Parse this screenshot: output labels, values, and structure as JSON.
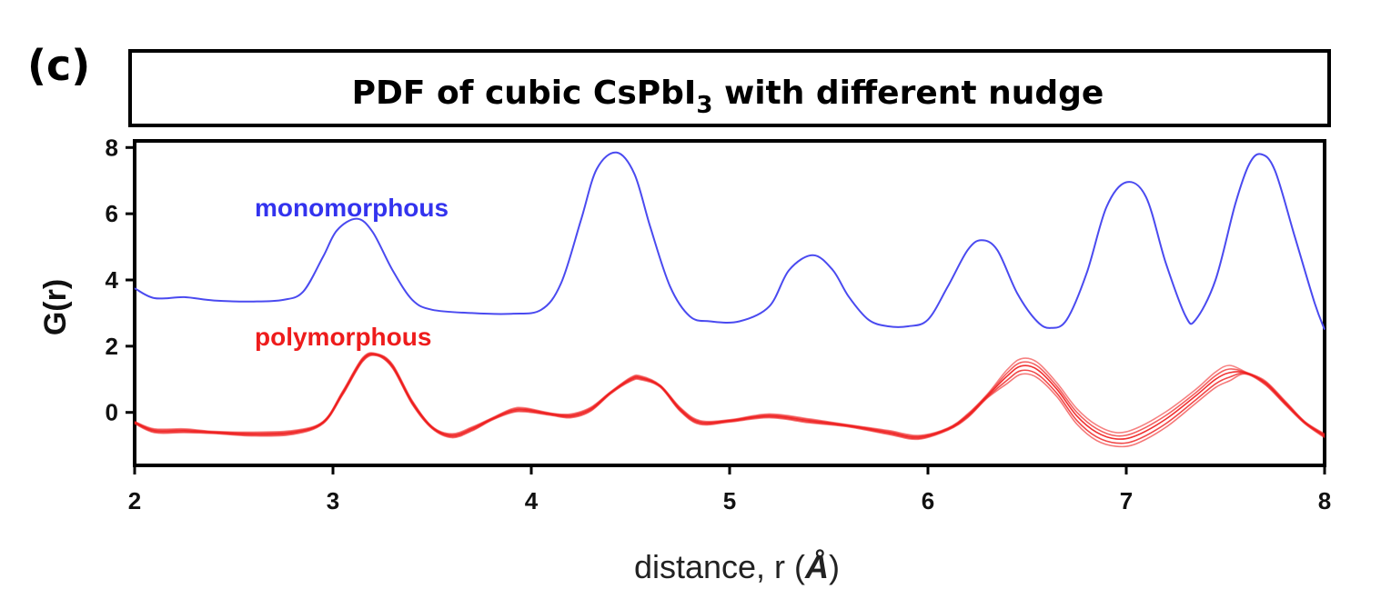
{
  "panel_label": "(c)",
  "chart_data": {
    "type": "line",
    "title": {
      "prefix": "PDF of cubic CsPbI",
      "subscript": "3",
      "suffix": " with different nudge"
    },
    "xlabel": {
      "prefix": "distance, r (",
      "symbol": "Å",
      "suffix": ")"
    },
    "ylabel": "G(r)",
    "xlim": [
      2,
      8
    ],
    "ylim": [
      -1.6,
      8.2
    ],
    "x_ticks": [
      "2",
      "3",
      "4",
      "5",
      "6",
      "7",
      "8"
    ],
    "y_ticks": [
      "0",
      "2",
      "4",
      "6",
      "8"
    ],
    "grid": false,
    "series": [
      {
        "name": "monomorphous",
        "color": "#4a4af0",
        "x": [
          2.0,
          2.1,
          2.25,
          2.4,
          2.6,
          2.75,
          2.85,
          2.95,
          3.02,
          3.12,
          3.2,
          3.3,
          3.4,
          3.5,
          3.7,
          3.9,
          4.05,
          4.15,
          4.25,
          4.33,
          4.43,
          4.52,
          4.6,
          4.7,
          4.8,
          4.9,
          5.05,
          5.2,
          5.3,
          5.42,
          5.52,
          5.6,
          5.7,
          5.8,
          5.9,
          6.0,
          6.1,
          6.2,
          6.27,
          6.35,
          6.45,
          6.55,
          6.62,
          6.7,
          6.8,
          6.9,
          7.0,
          7.1,
          7.2,
          7.3,
          7.35,
          7.45,
          7.55,
          7.62,
          7.68,
          7.75,
          7.85,
          7.95,
          8.0
        ],
        "y": [
          3.75,
          3.45,
          3.48,
          3.38,
          3.35,
          3.4,
          3.65,
          4.7,
          5.5,
          5.85,
          5.45,
          4.3,
          3.4,
          3.1,
          3.0,
          2.98,
          3.1,
          3.9,
          5.8,
          7.35,
          7.85,
          7.2,
          5.6,
          3.8,
          2.9,
          2.75,
          2.75,
          3.2,
          4.3,
          4.75,
          4.3,
          3.5,
          2.8,
          2.6,
          2.6,
          2.8,
          3.8,
          4.9,
          5.2,
          4.9,
          3.6,
          2.75,
          2.55,
          2.8,
          4.2,
          6.2,
          6.95,
          6.5,
          4.5,
          2.9,
          2.8,
          4.0,
          6.3,
          7.5,
          7.8,
          7.3,
          5.3,
          3.3,
          2.5
        ]
      },
      {
        "name": "polymorphous",
        "color": "#ee1c1c",
        "x": [
          2.0,
          2.1,
          2.25,
          2.4,
          2.6,
          2.8,
          2.95,
          3.05,
          3.15,
          3.22,
          3.3,
          3.4,
          3.5,
          3.6,
          3.7,
          3.8,
          3.9,
          3.97,
          4.1,
          4.2,
          4.3,
          4.4,
          4.5,
          4.55,
          4.65,
          4.75,
          4.85,
          5.0,
          5.2,
          5.4,
          5.6,
          5.8,
          5.95,
          6.1,
          6.2,
          6.3,
          6.4,
          6.47,
          6.55,
          6.65,
          6.75,
          6.85,
          6.95,
          7.05,
          7.2,
          7.35,
          7.45,
          7.52,
          7.6,
          7.7,
          7.8,
          7.9,
          8.0
        ],
        "y": [
          -0.3,
          -0.55,
          -0.55,
          -0.6,
          -0.65,
          -0.6,
          -0.3,
          0.6,
          1.6,
          1.75,
          1.4,
          0.3,
          -0.45,
          -0.7,
          -0.5,
          -0.2,
          0.05,
          0.08,
          -0.05,
          -0.1,
          0.1,
          0.6,
          1.0,
          1.05,
          0.8,
          0.1,
          -0.3,
          -0.25,
          -0.1,
          -0.25,
          -0.4,
          -0.6,
          -0.75,
          -0.5,
          -0.1,
          0.5,
          1.1,
          1.4,
          1.3,
          0.7,
          -0.1,
          -0.6,
          -0.8,
          -0.7,
          -0.2,
          0.5,
          1.0,
          1.2,
          1.2,
          0.9,
          0.3,
          -0.3,
          -0.7
        ]
      }
    ]
  }
}
